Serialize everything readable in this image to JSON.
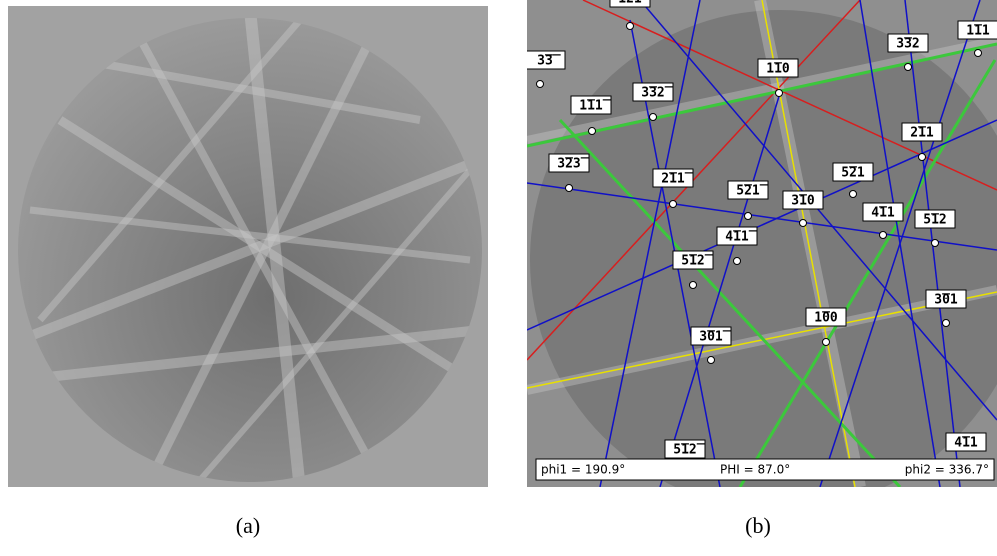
{
  "panel_a": {
    "caption": "(a)"
  },
  "panel_b": {
    "caption": "(b)",
    "pole_labels": [
      "1̅2̅1",
      "3̅3̅",
      "1̅11",
      "3̅32",
      "1̅10",
      "1̅11̅",
      "3̅32̅",
      "2̅11",
      "3̅23̅",
      "2̅11̅",
      "5̅21",
      "5̅21̅",
      "3̅10",
      "4̅11",
      "5̅12",
      "4̅11̅",
      "5̅12̅",
      "3̅01",
      "1̅00",
      "3̅01̅",
      "5̅12̅",
      "4̅11"
    ],
    "euler_angles": [
      "phi1 = 190.9°",
      "PHI = 87.0°",
      "phi2 = 336.7°"
    ]
  }
}
